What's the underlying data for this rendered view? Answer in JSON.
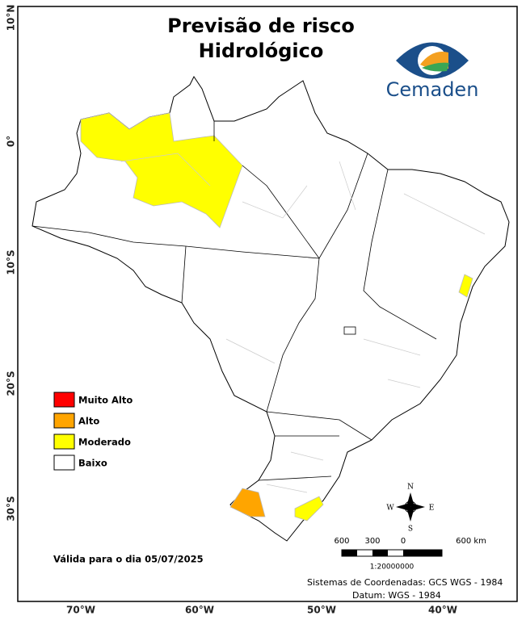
{
  "header": {
    "title_lines": [
      "Previsão de risco",
      "Hidrológico"
    ],
    "logo_text": "Cemaden"
  },
  "axes": {
    "lat_labels": [
      "10°N",
      "0°",
      "10°S",
      "20°S",
      "30°S"
    ],
    "lon_labels": [
      "70°W",
      "60°W",
      "50°W",
      "40°W"
    ]
  },
  "legend": {
    "items": [
      {
        "label": "Muito Alto",
        "color": "#ff0000"
      },
      {
        "label": "Alto",
        "color": "#ffa500"
      },
      {
        "label": "Moderado",
        "color": "#ffff00"
      },
      {
        "label": "Baixo",
        "color": "#ffffff"
      }
    ]
  },
  "compass": {
    "north": "N",
    "south": "S",
    "east": "E",
    "west": "W"
  },
  "scale": {
    "labels": [
      "600",
      "300",
      "0",
      "600 km"
    ],
    "ratio": "1:20000000"
  },
  "validity": "Válida para o dia 05/07/2025",
  "footer": {
    "coords": "Sistemas de Coordenadas: GCS WGS - 1984",
    "datum": "Datum: WGS - 1984"
  }
}
